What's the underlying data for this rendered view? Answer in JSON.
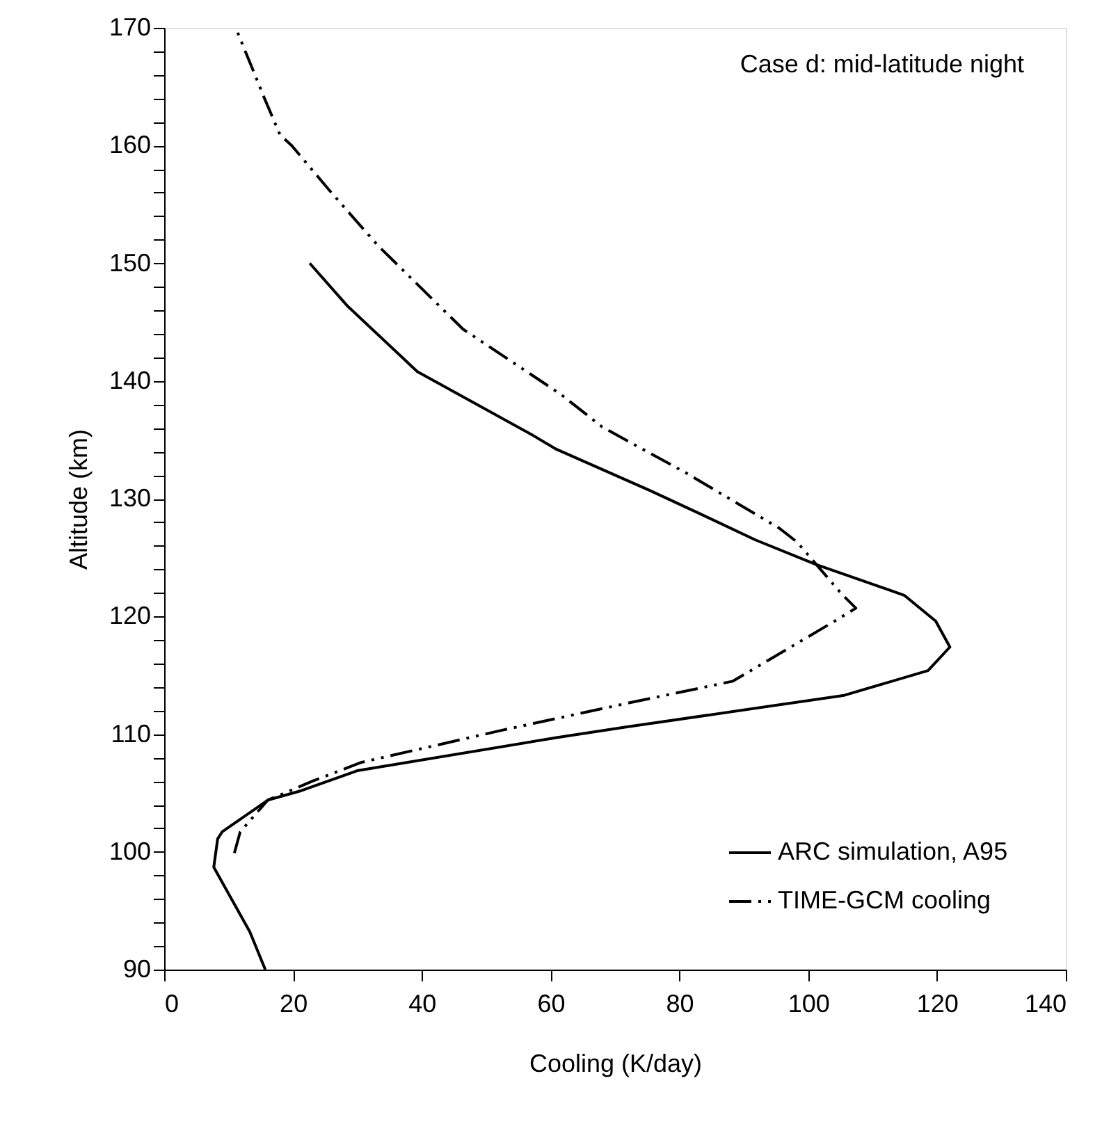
{
  "chart_data": {
    "type": "line",
    "xlabel": "Cooling (K/day)",
    "ylabel": "Altitude (km)",
    "xlim": [
      0,
      140
    ],
    "xticks": [
      0,
      20,
      40,
      60,
      80,
      100,
      120,
      140
    ],
    "ylim": [
      90,
      170
    ],
    "yticks": [
      90,
      {
        "value": 92,
        "label": null
      },
      {
        "value": 94,
        "label": null
      },
      {
        "value": 96,
        "label": null
      },
      {
        "value": 98,
        "label": null
      },
      100,
      {
        "value": 102,
        "label": null
      },
      {
        "value": 104,
        "label": null
      },
      {
        "value": 106,
        "label": null
      },
      {
        "value": 108,
        "label": null
      },
      110,
      {
        "value": 112,
        "label": null
      },
      {
        "value": 114,
        "label": null
      },
      {
        "value": 116,
        "label": null
      },
      {
        "value": 118,
        "label": null
      },
      120,
      {
        "value": 122,
        "label": null
      },
      {
        "value": 124,
        "label": null
      },
      {
        "value": 126,
        "label": null
      },
      {
        "value": 128,
        "label": null
      },
      130,
      {
        "value": 132,
        "label": null
      },
      {
        "value": 134,
        "label": null
      },
      {
        "value": 136,
        "label": null
      },
      {
        "value": 138,
        "label": null
      },
      140,
      {
        "value": 142,
        "label": null
      },
      {
        "value": 144,
        "label": null
      },
      {
        "value": 146,
        "label": null
      },
      {
        "value": 148,
        "label": null
      },
      150,
      {
        "value": 152,
        "label": null
      },
      {
        "value": 154,
        "label": null
      },
      {
        "value": 156,
        "label": null
      },
      {
        "value": 158,
        "label": null
      },
      160,
      {
        "value": 162,
        "label": null
      },
      {
        "value": 164,
        "label": null
      },
      {
        "value": 166,
        "label": null
      },
      {
        "value": 168,
        "label": null
      },
      170
    ],
    "grid": false,
    "legend": "bottom right",
    "marker": "none",
    "annotations": [
      "Case d: mid-latitude night"
    ],
    "series": [
      {
        "name": "ARC simulation, A95",
        "color": "#000000",
        "line_style": "solid",
        "x": [
          15.7,
          13.3,
          7.7,
          8.3,
          9.0,
          16.1,
          21.3,
          30.0,
          60.9,
          71.7,
          105.6,
          118.6,
          122.0,
          119.8,
          114.9,
          101.3,
          91.8,
          82.5,
          75.4,
          60.9,
          57.2,
          39.3,
          28.4,
          22.6
        ],
        "values": [
          90,
          93.2,
          98.7,
          101.1,
          101.7,
          104.4,
          105.2,
          106.9,
          109.7,
          110.6,
          113.3,
          115.4,
          117.4,
          119.6,
          121.8,
          124.4,
          126.5,
          128.9,
          130.7,
          134.2,
          135.4,
          140.8,
          146.4,
          150
        ]
      },
      {
        "name": "TIME-GCM cooling",
        "color": "#000000",
        "line_style": "dashed",
        "x": [
          10.9,
          11.8,
          16.1,
          23.0,
          30.6,
          52.2,
          71.7,
          88.3,
          104.1,
          107.4,
          105.2,
          98.3,
          95.5,
          81.0,
          68.0,
          61.5,
          46.4,
          33.2,
          25.8,
          19.8,
          18.0,
          15.5,
          13.5,
          11.1
        ],
        "values": [
          99.9,
          101.7,
          104.4,
          106.0,
          107.6,
          110.3,
          112.6,
          114.5,
          119.6,
          120.7,
          121.9,
          126.3,
          127.5,
          132.2,
          136.1,
          138.9,
          144.4,
          151.5,
          156.1,
          160.0,
          160.9,
          164.1,
          166.8,
          170
        ]
      }
    ]
  }
}
